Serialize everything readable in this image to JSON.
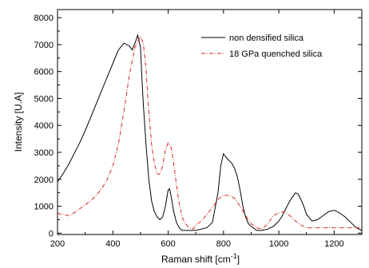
{
  "chart_data": {
    "type": "line",
    "xlabel": "Raman shift [cm",
    "xlabel_sup": "-1",
    "xlabel_suffix": "]",
    "ylabel": "Intensity [U.A]",
    "xlim": [
      200,
      1300
    ],
    "ylim": [
      -50,
      8300
    ],
    "xticks": [
      200,
      400,
      600,
      800,
      1000,
      1200
    ],
    "yticks": [
      0,
      1000,
      2000,
      3000,
      4000,
      5000,
      6000,
      7000,
      8000
    ],
    "grid": false,
    "legend_position": "top-right",
    "series": [
      {
        "name": "non densified silica",
        "color": "#000000",
        "dash": "solid",
        "x": [
          200,
          220,
          240,
          260,
          280,
          300,
          320,
          340,
          360,
          380,
          400,
          420,
          440,
          460,
          470,
          480,
          490,
          500,
          505,
          510,
          520,
          530,
          540,
          550,
          560,
          570,
          580,
          590,
          600,
          605,
          610,
          620,
          630,
          640,
          650,
          660,
          680,
          700,
          720,
          740,
          760,
          780,
          790,
          800,
          810,
          820,
          830,
          840,
          850,
          860,
          870,
          880,
          890,
          900,
          920,
          940,
          960,
          980,
          1000,
          1010,
          1020,
          1030,
          1040,
          1050,
          1060,
          1070,
          1080,
          1090,
          1100,
          1120,
          1140,
          1160,
          1180,
          1200,
          1220,
          1240,
          1260,
          1280,
          1300
        ],
        "y": [
          1900,
          2200,
          2550,
          2950,
          3350,
          3800,
          4300,
          4800,
          5300,
          5800,
          6300,
          6800,
          7050,
          6950,
          6800,
          7050,
          7350,
          6900,
          5800,
          4800,
          3300,
          2000,
          1200,
          800,
          600,
          500,
          600,
          1000,
          1600,
          1650,
          1400,
          800,
          400,
          200,
          100,
          100,
          100,
          100,
          150,
          200,
          400,
          1500,
          2500,
          2950,
          2800,
          2700,
          2600,
          2400,
          2100,
          1600,
          1000,
          600,
          350,
          250,
          100,
          100,
          150,
          250,
          450,
          600,
          800,
          1000,
          1200,
          1350,
          1500,
          1450,
          1250,
          1000,
          700,
          450,
          500,
          650,
          800,
          850,
          750,
          600,
          400,
          200,
          100
        ]
      },
      {
        "name": "18 GPa quenched silica",
        "color": "#d62020",
        "dash": "dashdot",
        "x": [
          200,
          210,
          220,
          240,
          260,
          280,
          300,
          320,
          340,
          360,
          380,
          400,
          420,
          440,
          460,
          480,
          490,
          500,
          510,
          520,
          530,
          540,
          550,
          560,
          570,
          580,
          590,
          600,
          610,
          620,
          630,
          640,
          650,
          660,
          670,
          680,
          690,
          700,
          720,
          740,
          760,
          780,
          800,
          820,
          840,
          860,
          880,
          900,
          920,
          940,
          960,
          980,
          1000,
          1020,
          1040,
          1060,
          1080,
          1100,
          1120,
          1140,
          1160,
          1180,
          1200,
          1220,
          1250,
          1300
        ],
        "y": [
          750,
          700,
          700,
          650,
          750,
          900,
          1050,
          1200,
          1400,
          1650,
          2000,
          2500,
          3300,
          4500,
          5900,
          6900,
          7100,
          7300,
          7050,
          6100,
          4500,
          3300,
          2600,
          2200,
          2200,
          2500,
          3100,
          3350,
          3200,
          2600,
          1800,
          1100,
          600,
          400,
          250,
          200,
          150,
          300,
          450,
          700,
          950,
          1250,
          1400,
          1400,
          1300,
          1000,
          650,
          350,
          200,
          150,
          350,
          650,
          750,
          800,
          650,
          450,
          300,
          200,
          200,
          200,
          200,
          200,
          200,
          200,
          200,
          200
        ]
      }
    ]
  }
}
